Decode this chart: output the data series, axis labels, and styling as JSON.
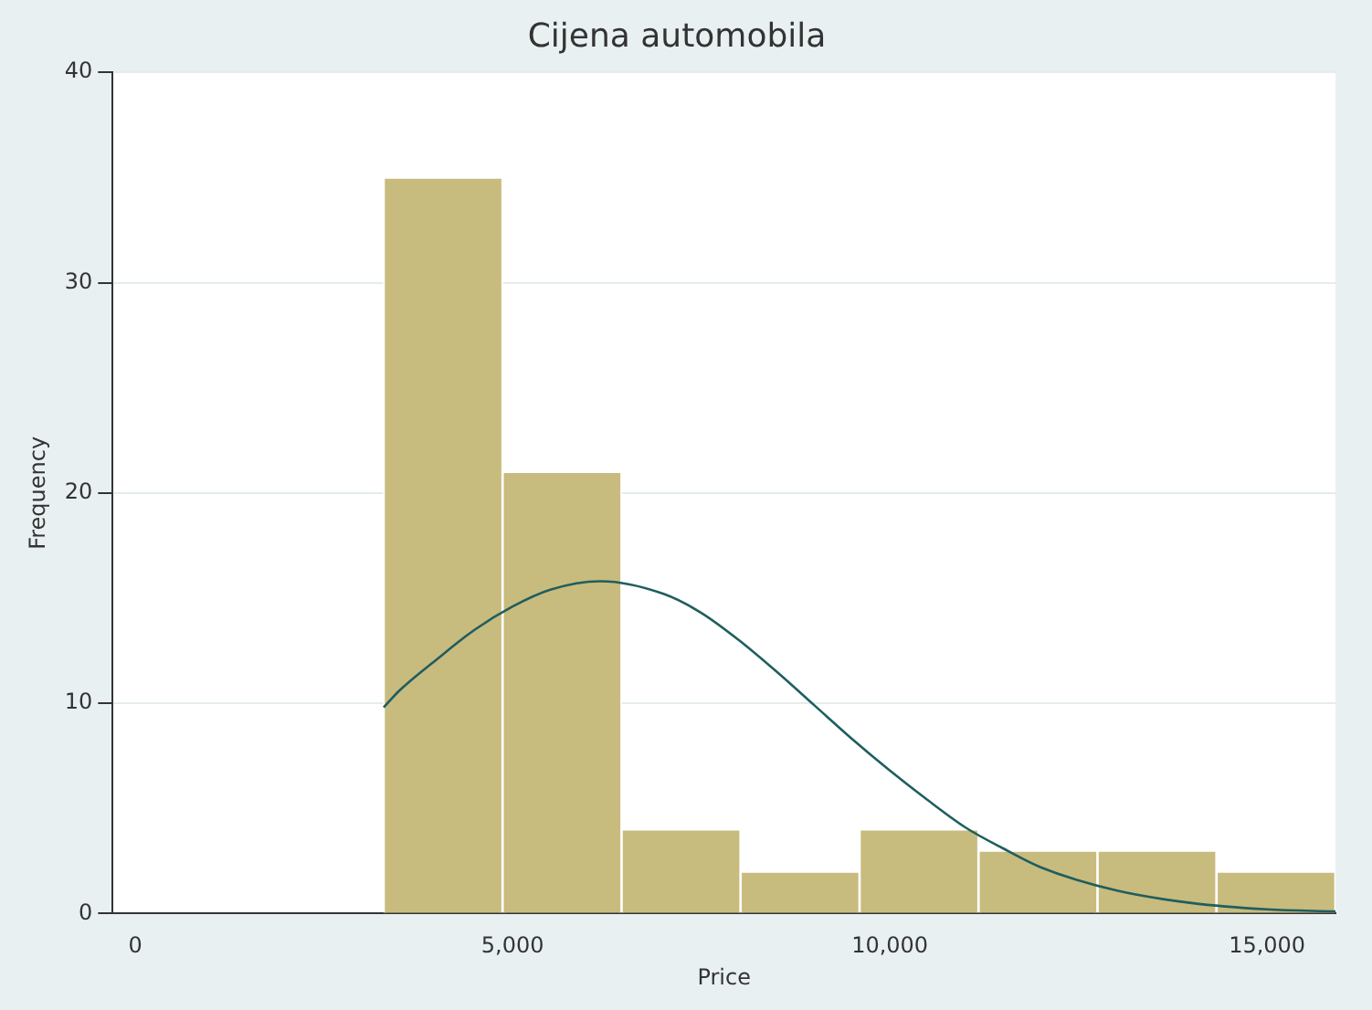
{
  "chart_data": {
    "type": "histogram",
    "title": "Cijena automobila",
    "xlabel": "Price",
    "ylabel": "Frequency",
    "bins": [
      3291,
      4867.9,
      6444.8,
      8021.6,
      9598.5,
      11175.4,
      12752.3,
      14329.1,
      15906
    ],
    "values": [
      35,
      21,
      4,
      2,
      4,
      3,
      3,
      2
    ],
    "color": "#c8bb7e",
    "xlim": [
      -300,
      15906
    ],
    "xticks": [
      {
        "value": 0,
        "label": "0"
      },
      {
        "value": 5000,
        "label": "5,000"
      },
      {
        "value": 10000,
        "label": "10,000"
      },
      {
        "value": 15000,
        "label": "15,000"
      }
    ],
    "ylim": [
      0,
      40
    ],
    "yticks": [
      0,
      10,
      20,
      30,
      40
    ],
    "grid": "y",
    "legend": false,
    "series": [
      {
        "type": "line",
        "color": "#1f5e5e",
        "x": [
          3291,
          3500,
          4000,
          4500,
          5000,
          5500,
          6165,
          7000,
          7500,
          8000,
          8500,
          9000,
          9500,
          10000,
          10500,
          11000,
          11500,
          12000,
          13000,
          14000,
          15000,
          15906
        ],
        "values": [
          9.8,
          10.6,
          12.1,
          13.5,
          14.6,
          15.4,
          15.8,
          15.2,
          14.3,
          13.0,
          11.5,
          9.9,
          8.3,
          6.8,
          5.4,
          4.1,
          3.1,
          2.2,
          1.1,
          0.5,
          0.2,
          0.1
        ]
      }
    ]
  }
}
